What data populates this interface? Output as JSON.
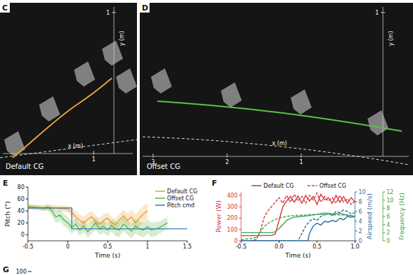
{
  "panels": [
    {
      "label": "C",
      "caption": "Default CG",
      "x_label": "x (m)",
      "y_label": "y (m)",
      "x_ticks": [
        1
      ],
      "y_ticks": [
        1
      ],
      "color": "#e8a040"
    },
    {
      "label": "D",
      "caption": "Offset CG",
      "x_label": "x (m)",
      "y_label": "y (m)",
      "x_ticks": [
        3,
        2,
        1
      ],
      "y_ticks": [
        1
      ],
      "color": "#5cc04a"
    }
  ],
  "chart_data": [
    {
      "type": "line",
      "panel_label": "E",
      "xlabel": "Time (s)",
      "ylabel": "Pitch (°)",
      "xlim": [
        -0.5,
        1.5
      ],
      "xticks": [
        -0.5,
        0,
        0.5,
        1,
        1.5
      ],
      "ylim": [
        -10,
        80
      ],
      "yticks": [
        0,
        20,
        40,
        60,
        80
      ],
      "grid": false,
      "legend": "upper right",
      "series": [
        {
          "name": "Default CG",
          "color": "#f0a030",
          "line_style": "solid",
          "x": [
            -0.5,
            -0.4,
            -0.3,
            -0.2,
            -0.1,
            0,
            0.05,
            0.1,
            0.15,
            0.2,
            0.25,
            0.3,
            0.35,
            0.4,
            0.45,
            0.5,
            0.55,
            0.6,
            0.65,
            0.7,
            0.75,
            0.8,
            0.85,
            0.9,
            0.95,
            1.0
          ],
          "values": [
            47,
            46,
            44,
            45,
            44,
            43,
            38,
            30,
            24,
            20,
            26,
            30,
            22,
            18,
            24,
            28,
            20,
            17,
            25,
            32,
            24,
            30,
            20,
            28,
            35,
            40
          ],
          "error": [
            4,
            4,
            4,
            5,
            5,
            6,
            8,
            10,
            10,
            10,
            10,
            10,
            10,
            10,
            10,
            10,
            10,
            10,
            10,
            10,
            12,
            12,
            14,
            14,
            14,
            12
          ]
        },
        {
          "name": "Offset CG",
          "color": "#5cb84a",
          "line_style": "solid",
          "x": [
            -0.5,
            -0.4,
            -0.3,
            -0.25,
            -0.2,
            -0.15,
            -0.1,
            -0.05,
            0,
            0.05,
            0.1,
            0.15,
            0.2,
            0.25,
            0.3,
            0.35,
            0.4,
            0.45,
            0.5,
            0.55,
            0.6,
            0.65,
            0.7,
            0.75,
            0.8,
            0.85,
            0.9,
            0.95,
            1.0,
            1.05,
            1.1,
            1.15,
            1.2,
            1.25
          ],
          "values": [
            47,
            46,
            45,
            47,
            40,
            30,
            33,
            25,
            20,
            12,
            18,
            8,
            15,
            5,
            12,
            20,
            10,
            14,
            8,
            16,
            10,
            8,
            18,
            12,
            6,
            15,
            10,
            8,
            14,
            8,
            10,
            12,
            16,
            20
          ],
          "error": [
            4,
            4,
            5,
            5,
            8,
            10,
            10,
            10,
            10,
            10,
            10,
            10,
            10,
            10,
            10,
            10,
            10,
            10,
            10,
            10,
            12,
            12,
            12,
            12,
            12,
            12,
            12,
            12,
            12,
            12,
            12,
            10,
            10,
            10
          ]
        },
        {
          "name": "Pitch cmd",
          "color": "#3b7fc4",
          "line_style": "solid",
          "x": [
            -0.5,
            0.05,
            0.05,
            1.5
          ],
          "values": [
            45,
            45,
            10,
            10
          ]
        }
      ]
    },
    {
      "type": "line",
      "panel_label": "F",
      "xlabel": "Time (s)",
      "ylabel": "Power (W)",
      "y2label": "Airspeed (m/s)",
      "y3label": "Frequency (Hz)",
      "xlim": [
        -0.5,
        1.0
      ],
      "xticks": [
        -0.5,
        {
          "value": 0,
          "label": "0.0"
        },
        0.5,
        {
          "value": 1,
          "label": "1.0"
        }
      ],
      "ylim": [
        0,
        430
      ],
      "yticks": [
        0,
        100,
        200,
        300,
        400
      ],
      "y2lim": [
        0,
        10
      ],
      "y2ticks": [
        0,
        2,
        4,
        6,
        8,
        10
      ],
      "y3lim": [
        0,
        12
      ],
      "y3ticks": [
        0,
        2,
        4,
        6,
        8,
        10,
        12
      ],
      "grid": false,
      "legend": "top",
      "series": [
        {
          "name": "Default CG",
          "color": "#d9383a",
          "line_style": "solid",
          "axis": "y",
          "x": [
            -0.5,
            -0.3,
            -0.1,
            -0.05,
            0,
            0.05,
            0.1,
            0.15,
            0.2,
            0.25,
            0.3,
            0.35,
            0.4,
            0.45,
            0.5,
            0.55,
            0.6,
            0.65,
            0.7,
            0.75,
            0.8,
            0.85,
            0.9,
            0.95,
            1.0
          ],
          "values": [
            45,
            45,
            48,
            60,
            180,
            300,
            350,
            390,
            340,
            395,
            330,
            400,
            350,
            390,
            320,
            410,
            360,
            380,
            330,
            400,
            340,
            390,
            330,
            380,
            340
          ]
        },
        {
          "name": "Offset CG",
          "color": "#d9383a",
          "line_style": "dashed",
          "axis": "y",
          "x": [
            -0.5,
            -0.4,
            -0.3,
            -0.25,
            -0.2,
            -0.15,
            -0.1,
            -0.05,
            0,
            0.05,
            0.1,
            0.15,
            0.2,
            0.25,
            0.3,
            0.35,
            0.4,
            0.45,
            0.5,
            0.55,
            0.6,
            0.65,
            0.7,
            0.75,
            0.8,
            0.85,
            0.9,
            0.95,
            1.0
          ],
          "values": [
            0,
            0,
            10,
            80,
            200,
            260,
            300,
            340,
            380,
            330,
            400,
            340,
            410,
            350,
            390,
            330,
            400,
            360,
            420,
            340,
            390,
            350,
            380,
            330,
            400,
            340,
            370,
            320,
            350
          ]
        },
        {
          "name": "Default CG",
          "color": "#1f6fa8",
          "line_style": "solid",
          "axis": "y2",
          "x": [
            -0.5,
            0.38,
            0.4,
            0.45,
            0.5,
            0.55,
            0.6,
            0.65,
            0.7,
            0.75,
            0.8,
            0.85,
            0.9,
            0.95,
            1.0
          ],
          "values": [
            0,
            0,
            1.5,
            3,
            3.6,
            3.2,
            4,
            3.8,
            4.2,
            3.9,
            4.6,
            4.3,
            5,
            4.8,
            5
          ]
        },
        {
          "name": "Offset CG",
          "color": "#1f6fa8",
          "line_style": "dashed",
          "axis": "y2",
          "x": [
            -0.5,
            0.25,
            0.3,
            0.35,
            0.4,
            0.45,
            0.5,
            0.55,
            0.6,
            0.65,
            0.7,
            0.75,
            0.8,
            0.85,
            0.9,
            0.95,
            1.0
          ],
          "values": [
            0,
            0,
            1.5,
            3,
            4,
            4.5,
            4.2,
            5,
            5.3,
            5.6,
            5.2,
            6,
            5.8,
            6.3,
            6,
            5.5,
            5.8
          ]
        },
        {
          "name": "Default CG",
          "color": "#3aa64a",
          "line_style": "solid",
          "axis": "y3",
          "x": [
            -0.5,
            -0.1,
            -0.05,
            0,
            0.05,
            0.1,
            0.15,
            0.2,
            0.3,
            0.4,
            0.5,
            0.6,
            0.7,
            0.8,
            0.9,
            1.0
          ],
          "values": [
            2,
            2,
            2.2,
            3,
            4,
            5,
            5.5,
            5.8,
            6,
            6.2,
            6.5,
            6.8,
            6.6,
            6.7,
            6.3,
            6
          ]
        },
        {
          "name": "Offset CG",
          "color": "#3aa64a",
          "line_style": "dashed",
          "axis": "y3",
          "x": [
            -0.5,
            -0.4,
            -0.3,
            -0.25,
            -0.2,
            -0.15,
            -0.1,
            -0.05,
            0,
            0.1,
            0.2,
            0.3,
            0.5,
            0.7,
            0.9,
            1.0
          ],
          "values": [
            0.3,
            0.5,
            0.8,
            2,
            3.5,
            4.2,
            4.8,
            5.2,
            5.6,
            6,
            6.2,
            6.3,
            6.5,
            6.4,
            6.3,
            6
          ]
        }
      ]
    }
  ],
  "panel_g": {
    "label": "G",
    "yticks": [
      100
    ]
  }
}
